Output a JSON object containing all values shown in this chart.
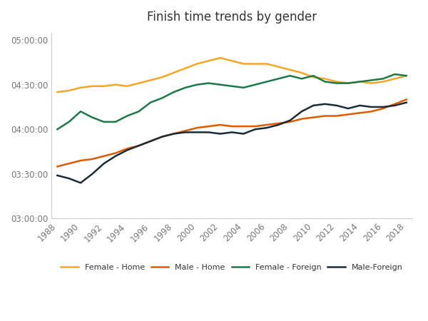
{
  "title": "Finish time trends by gender",
  "years": [
    1988,
    1989,
    1990,
    1991,
    1992,
    1993,
    1994,
    1995,
    1996,
    1997,
    1998,
    1999,
    2000,
    2001,
    2002,
    2003,
    2004,
    2005,
    2006,
    2007,
    2008,
    2009,
    2010,
    2011,
    2012,
    2013,
    2014,
    2015,
    2016,
    2017,
    2018
  ],
  "female_home": [
    265,
    266,
    268,
    269,
    269,
    270,
    269,
    271,
    273,
    275,
    278,
    281,
    284,
    286,
    288,
    286,
    284,
    284,
    284,
    282,
    280,
    278,
    275,
    274,
    272,
    271,
    272,
    271,
    272,
    274,
    276
  ],
  "male_home": [
    215,
    217,
    219,
    220,
    222,
    224,
    227,
    229,
    232,
    235,
    237,
    239,
    241,
    242,
    243,
    242,
    242,
    242,
    243,
    244,
    245,
    247,
    248,
    249,
    249,
    250,
    251,
    252,
    254,
    257,
    260
  ],
  "female_foreign": [
    240,
    245,
    252,
    248,
    245,
    245,
    249,
    252,
    258,
    261,
    265,
    268,
    270,
    271,
    270,
    269,
    268,
    270,
    272,
    274,
    276,
    274,
    276,
    272,
    271,
    271,
    272,
    273,
    274,
    277,
    276
  ],
  "male_foreign": [
    209,
    207,
    204,
    210,
    217,
    222,
    226,
    229,
    232,
    235,
    237,
    238,
    238,
    238,
    237,
    238,
    237,
    240,
    241,
    243,
    246,
    252,
    256,
    257,
    256,
    254,
    256,
    255,
    255,
    256,
    258
  ],
  "colors": {
    "female_home": "#F5A623",
    "male_home": "#E05A00",
    "female_foreign": "#1A7A4A",
    "male_foreign": "#1C2B35"
  },
  "ylim_min": 180,
  "ylim_max": 305,
  "yticks": [
    180,
    210,
    240,
    270,
    300
  ],
  "ytick_labels": [
    "03:00:00",
    "03:30:00",
    "04:00:00",
    "04:30:00",
    "05:00:00"
  ],
  "xtick_min": 1988,
  "xtick_max": 2018,
  "xtick_step": 2,
  "legend_labels": [
    "Female - Home",
    "Male - Home",
    "Female - Foreign",
    "Male-Foreign"
  ],
  "background_color": "#FFFFFF",
  "linewidth": 1.8,
  "figsize": [
    6.0,
    4.5
  ],
  "dpi": 100
}
